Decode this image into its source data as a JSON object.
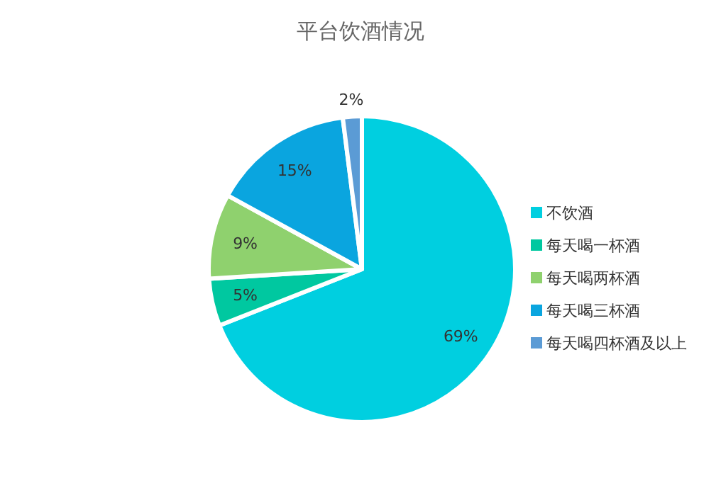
{
  "chart_data": {
    "type": "pie",
    "title": "平台饮酒情况",
    "categories": [
      "不饮酒",
      "每天喝一杯酒",
      "每天喝两杯酒",
      "每天喝三杯酒",
      "每天喝四杯酒及以上"
    ],
    "values": [
      69,
      5,
      9,
      15,
      2
    ],
    "value_labels": [
      "69%",
      "5%",
      "9%",
      "15%",
      "2%"
    ],
    "colors": [
      "#00cfe0",
      "#00c8a0",
      "#8fd16e",
      "#0aa5df",
      "#5b9bd5"
    ],
    "legend": "right"
  }
}
